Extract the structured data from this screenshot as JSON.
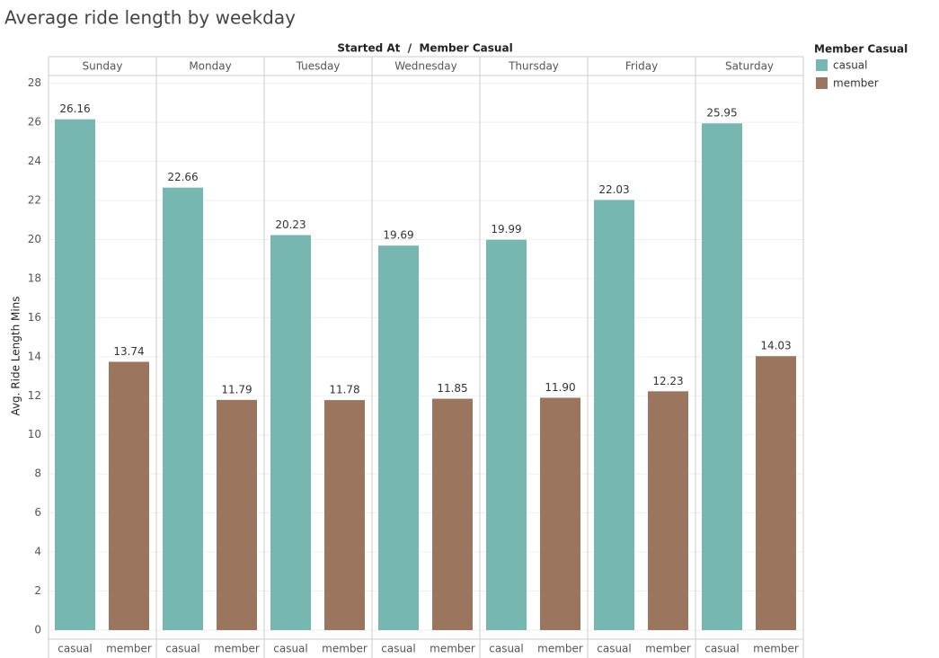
{
  "chart_data": {
    "type": "bar",
    "title": "Average ride length by  weekday",
    "header": "Started At  /  Member Casual",
    "y_label": "Avg. Ride Length Mins",
    "legend_title": "Member Casual",
    "legend_position": "right",
    "categories": [
      "Sunday",
      "Monday",
      "Tuesday",
      "Wednesday",
      "Thursday",
      "Friday",
      "Saturday"
    ],
    "series": [
      {
        "name": "casual",
        "color": "#76b7b2",
        "values": [
          26.16,
          22.66,
          20.23,
          19.69,
          19.99,
          22.03,
          25.95
        ],
        "value_labels": [
          "26.16",
          "22.66",
          "20.23",
          "19.69",
          "19.99",
          "22.03",
          "25.95"
        ]
      },
      {
        "name": "member",
        "color": "#9c755f",
        "values": [
          13.74,
          11.79,
          11.78,
          11.85,
          11.9,
          12.23,
          14.03
        ],
        "value_labels": [
          "13.74",
          "11.79",
          "11.78",
          "11.85",
          "11.90",
          "12.23",
          "14.03"
        ]
      }
    ],
    "ylim": [
      0,
      28.4
    ],
    "yticks": [
      0,
      2,
      4,
      6,
      8,
      10,
      12,
      14,
      16,
      18,
      20,
      22,
      24,
      26,
      28
    ],
    "grid": true
  }
}
